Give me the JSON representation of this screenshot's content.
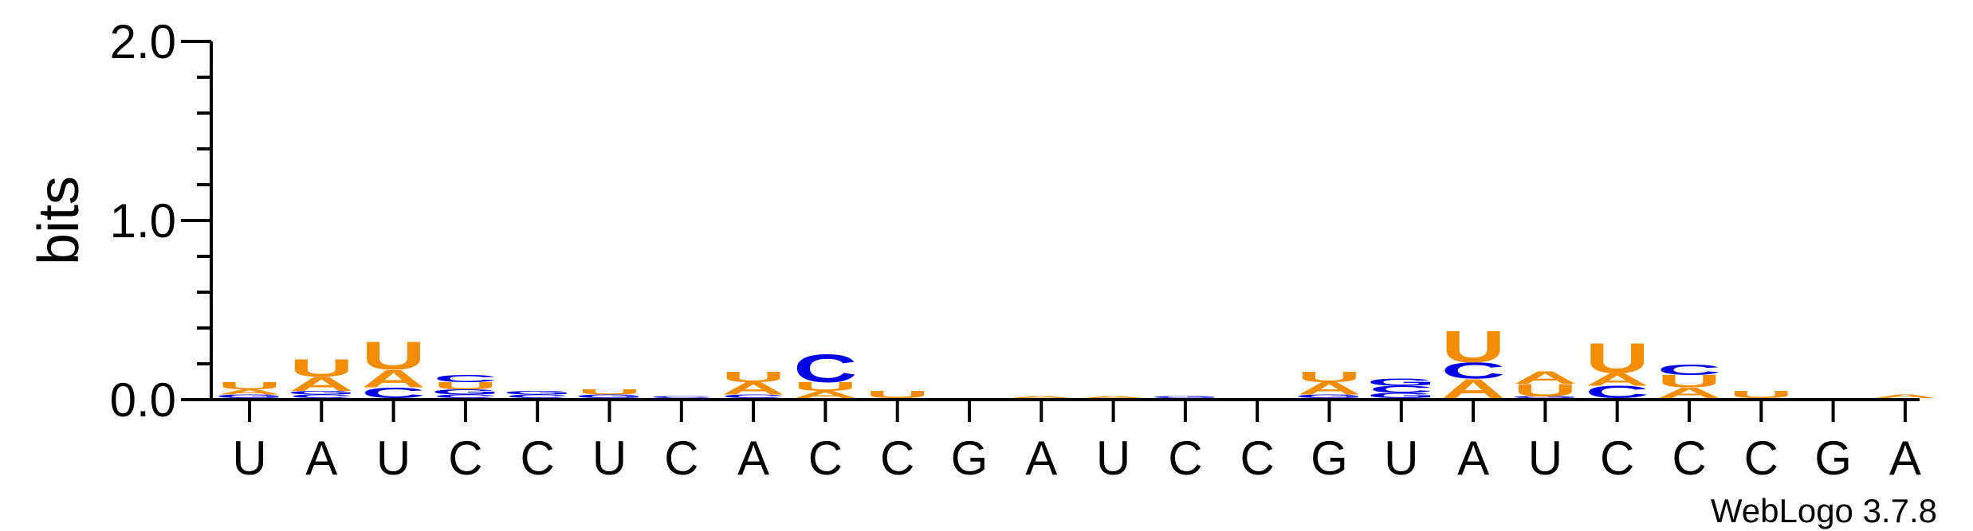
{
  "chart_data": {
    "type": "sequence-logo",
    "title": "",
    "ylabel": "bits",
    "ylim": [
      0,
      2.0
    ],
    "yticks": [
      "0.0",
      "1.0",
      "2.0"
    ],
    "xticks": [
      "U",
      "A",
      "U",
      "C",
      "C",
      "U",
      "C",
      "A",
      "C",
      "C",
      "G",
      "A",
      "U",
      "C",
      "C",
      "G",
      "U",
      "A",
      "U",
      "C",
      "C",
      "C",
      "G",
      "A"
    ],
    "colors": {
      "A": "#f28c00",
      "U": "#f28c00",
      "C": "#0000e6",
      "G": "#0000e6"
    },
    "positions": [
      [
        [
          "G",
          0.02
        ],
        [
          "A",
          0.03
        ],
        [
          "U",
          0.04
        ]
      ],
      [
        [
          "C",
          0.02
        ],
        [
          "G",
          0.02
        ],
        [
          "A",
          0.08
        ],
        [
          "U",
          0.1
        ]
      ],
      [
        [
          "C",
          0.06
        ],
        [
          "A",
          0.1
        ],
        [
          "U",
          0.16
        ]
      ],
      [
        [
          "C",
          0.02
        ],
        [
          "G",
          0.03
        ],
        [
          "U",
          0.04
        ],
        [
          "C",
          0.04
        ]
      ],
      [
        [
          "C",
          0.02
        ],
        [
          "G",
          0.02
        ]
      ],
      [
        [
          "G",
          0.02
        ],
        [
          "U",
          0.03
        ]
      ],
      [
        [
          "C",
          0.01
        ]
      ],
      [
        [
          "C",
          0.02
        ],
        [
          "A",
          0.07
        ],
        [
          "U",
          0.06
        ]
      ],
      [
        [
          "A",
          0.04
        ],
        [
          "U",
          0.05
        ],
        [
          "C",
          0.16
        ]
      ],
      [
        [
          "U",
          0.04
        ]
      ],
      [],
      [
        [
          "A",
          0.01
        ]
      ],
      [
        [
          "A",
          0.01
        ]
      ],
      [
        [
          "G",
          0.01
        ]
      ],
      [],
      [
        [
          "G",
          0.02
        ],
        [
          "A",
          0.07
        ],
        [
          "U",
          0.06
        ]
      ],
      [
        [
          "G",
          0.03
        ],
        [
          "C",
          0.04
        ],
        [
          "G",
          0.04
        ]
      ],
      [
        [
          "A",
          0.11
        ],
        [
          "C",
          0.09
        ],
        [
          "U",
          0.18
        ]
      ],
      [
        [
          "G",
          0.01
        ],
        [
          "U",
          0.07
        ],
        [
          "A",
          0.07
        ]
      ],
      [
        [
          "C",
          0.07
        ],
        [
          "A",
          0.07
        ],
        [
          "U",
          0.17
        ]
      ],
      [
        [
          "A",
          0.06
        ],
        [
          "U",
          0.07
        ],
        [
          "C",
          0.06
        ]
      ],
      [
        [
          "U",
          0.04
        ]
      ],
      [],
      [
        [
          "A",
          0.02
        ]
      ]
    ],
    "credit": "WebLogo 3.7.8"
  }
}
